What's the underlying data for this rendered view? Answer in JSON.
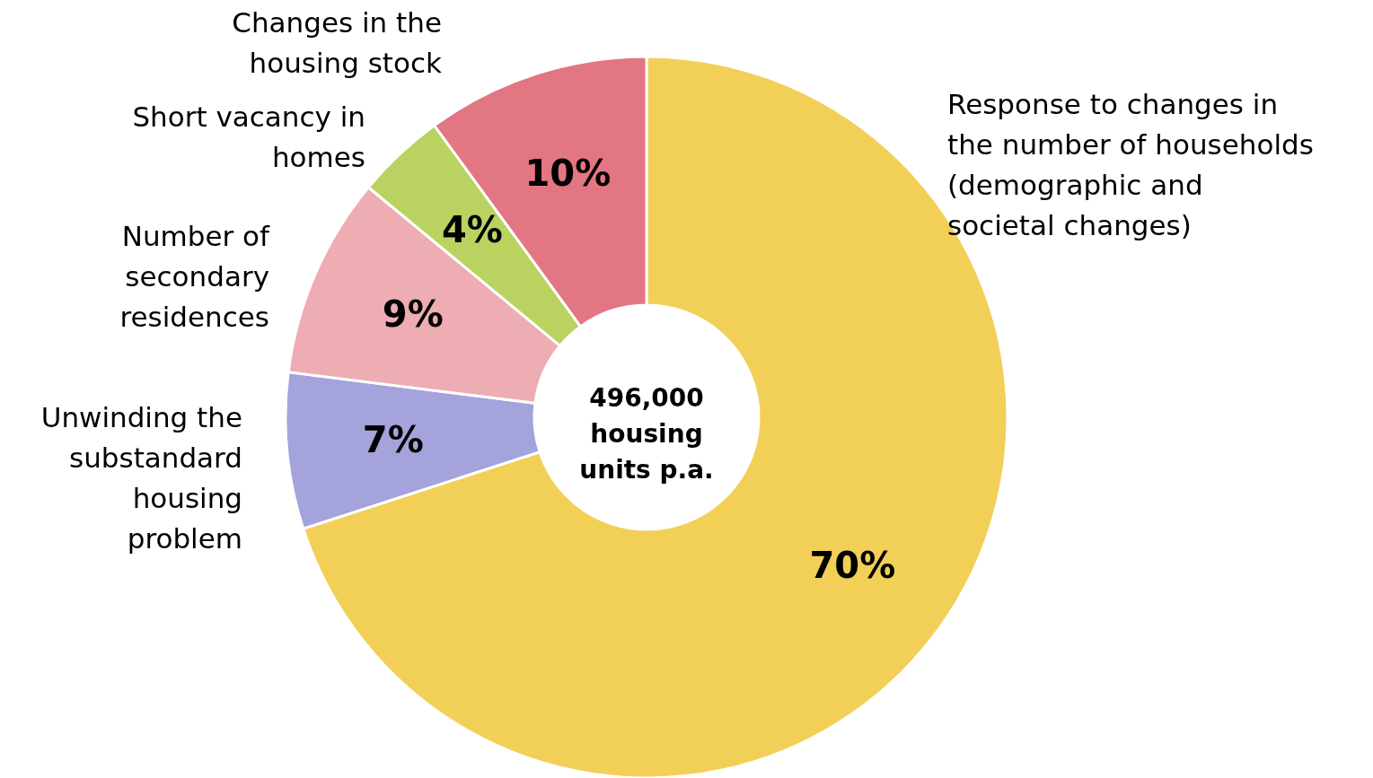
{
  "chart_data": {
    "type": "donut",
    "categories": [
      "Response to changes in the number of households (demographic and societal changes)",
      "Unwinding the substandard housing problem",
      "Number of secondary residences",
      "Short vacancy in homes",
      "Changes in the housing stock"
    ],
    "values": [
      70,
      7,
      9,
      4,
      10
    ],
    "colors": [
      "#f2d057",
      "#a5a3db",
      "#eeacb3",
      "#bad360",
      "#e27682"
    ],
    "value_labels": [
      "70%",
      "7%",
      "9%",
      "4%",
      "10%"
    ],
    "annotations": [
      "496,000 housing units p.a."
    ]
  }
}
